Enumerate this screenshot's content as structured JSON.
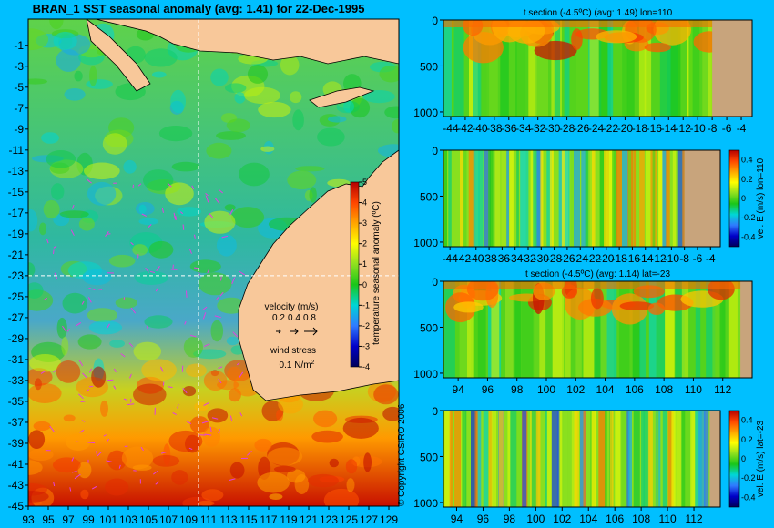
{
  "colors": {
    "background": "#00bfff",
    "land": "#f8c89a",
    "section_land": "#c8a47c",
    "anomaly_scale": [
      "#00005a",
      "#0000c8",
      "#2f7bff",
      "#00d6d6",
      "#19c619",
      "#8fe01f",
      "#ffff00",
      "#ffa500",
      "#ff4500",
      "#b40000"
    ]
  },
  "chart_data": [
    {
      "id": "map",
      "type": "heatmap",
      "title": "BRAN_1  SST seasonal anomaly (avg: 1.41) for 22-Dec-1995",
      "x_ticks": [
        "93",
        "95",
        "97",
        "99",
        "101",
        "103",
        "105",
        "107",
        "109",
        "111",
        "113",
        "115",
        "117",
        "119",
        "121",
        "123",
        "125",
        "127",
        "129"
      ],
      "y_ticks": [
        "-1",
        "-3",
        "-5",
        "-7",
        "-9",
        "-11",
        "-13",
        "-15",
        "-17",
        "-19",
        "-21",
        "-23",
        "-25",
        "-27",
        "-29",
        "-31",
        "-33",
        "-35",
        "-37",
        "-39",
        "-41",
        "-43",
        "-45"
      ],
      "xlim": [
        93,
        130
      ],
      "ylim": [
        -45,
        1.5
      ],
      "crosshair": {
        "lon": 110,
        "lat": -23
      },
      "colorbar": {
        "label": "temperature seasonal anomaly (ºC)",
        "ticks": [
          "5",
          "4",
          "3",
          "2",
          "1",
          "0",
          "-1",
          "-2",
          "-3",
          "-4"
        ],
        "range": [
          -4,
          5
        ]
      },
      "velocity_legend": {
        "title": "velocity (m/s)",
        "values": [
          "0.2",
          "0.4",
          "0.8"
        ]
      },
      "wind_legend": {
        "title": "wind stress",
        "value": "0.1 N/m",
        "exponent": "2"
      },
      "copyright": "© Copyright CSIRO 2006"
    },
    {
      "id": "t-section-lon",
      "type": "heatmap",
      "title": "t section (-4.5ºC) (avg: 1.49) lon=110",
      "x_ticks": [
        "-44",
        "-42",
        "-40",
        "-38",
        "-36",
        "-34",
        "-32",
        "-30",
        "-28",
        "-26",
        "-24",
        "-22",
        "-20",
        "-18",
        "-16",
        "-14",
        "-12",
        "-10",
        "-8",
        "-6",
        "-4"
      ],
      "y_ticks": [
        "0",
        "500",
        "1000"
      ],
      "xlim": [
        -45,
        -2.5
      ],
      "ylim": [
        1050,
        0
      ],
      "land_from": -8
    },
    {
      "id": "vel-section-lon",
      "type": "heatmap",
      "title": "",
      "x_ticks": [
        "-44",
        "-42",
        "-40",
        "-38",
        "-36",
        "-34",
        "-32",
        "-30",
        "-28",
        "-26",
        "-24",
        "-22",
        "-20",
        "-18",
        "-16",
        "-14",
        "-12",
        "-10",
        "-8",
        "-6",
        "-4"
      ],
      "y_ticks": [
        "0",
        "500",
        "1000"
      ],
      "xlim": [
        -45,
        -2.5
      ],
      "ylim": [
        1050,
        0
      ],
      "land_from": -8,
      "colorbar": {
        "label": "vel. E (m/s) lon=110",
        "ticks": [
          "0.4",
          "0.2",
          "0",
          "-0.2",
          "-0.4"
        ],
        "range": [
          -0.5,
          0.5
        ]
      }
    },
    {
      "id": "t-section-lat",
      "type": "heatmap",
      "title": "t section (-4.5ºC) (avg: 1.14) lat=-23",
      "x_ticks": [
        "94",
        "96",
        "98",
        "100",
        "102",
        "104",
        "106",
        "108",
        "110",
        "112"
      ],
      "y_ticks": [
        "0",
        "500",
        "1000"
      ],
      "xlim": [
        93,
        114
      ],
      "ylim": [
        1050,
        0
      ],
      "land_from": 113.2
    },
    {
      "id": "vel-section-lat",
      "type": "heatmap",
      "title": "",
      "x_ticks": [
        "94",
        "96",
        "98",
        "100",
        "102",
        "104",
        "106",
        "108",
        "110",
        "112"
      ],
      "y_ticks": [
        "0",
        "500",
        "1000"
      ],
      "xlim": [
        93,
        114
      ],
      "ylim": [
        1050,
        0
      ],
      "land_from": 113.2,
      "colorbar": {
        "label": "vel. E (m/s) lat=-23",
        "ticks": [
          "0.4",
          "0.2",
          "0",
          "-0.2",
          "-0.4"
        ],
        "range": [
          -0.5,
          0.5
        ]
      }
    }
  ]
}
